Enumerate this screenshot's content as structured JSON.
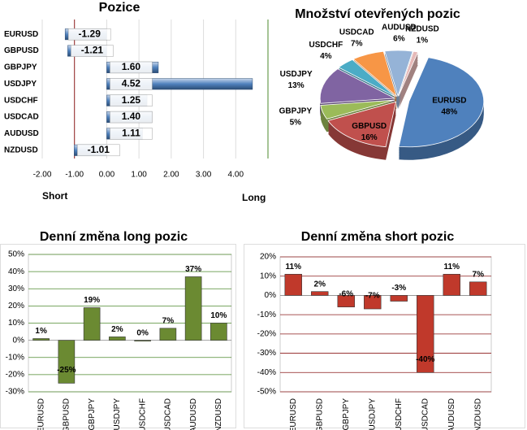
{
  "chart_data": [
    {
      "type": "hbar",
      "title": "Pozice",
      "categories": [
        "EURUSD",
        "GBPUSD",
        "GBPJPY",
        "USDJPY",
        "USDCHF",
        "USDCAD",
        "AUDUSD",
        "NZDUSD"
      ],
      "values": [
        -1.29,
        -1.21,
        1.6,
        4.52,
        1.25,
        1.4,
        1.11,
        -1.01
      ],
      "value_labels": [
        "-1.29",
        "-1.21",
        "1.60",
        "4.52",
        "1.25",
        "1.40",
        "1.11",
        "-1.01"
      ],
      "color": "#4f81bd",
      "xlim": [
        -2,
        5
      ],
      "xticks": [
        {
          "value": -2,
          "label": "-2.00"
        },
        {
          "value": -1,
          "label": "-1.00"
        },
        {
          "value": 0,
          "label": "0.00"
        },
        {
          "value": 1,
          "label": "1.00"
        },
        {
          "value": 2,
          "label": "2.00"
        },
        {
          "value": 3,
          "label": "3.00"
        },
        {
          "value": 4,
          "label": "4.00"
        }
      ],
      "annotations": [
        "Short",
        "Long"
      ]
    },
    {
      "type": "pie",
      "title": "Množství otevřených pozic",
      "categories": [
        "EURUSD",
        "GBPUSD",
        "GBPJPY",
        "USDJPY",
        "USDCHF",
        "USDCAD",
        "AUDUSD",
        "NZDUSD"
      ],
      "values": [
        48,
        16,
        5,
        13,
        4,
        7,
        6,
        1
      ],
      "value_labels": [
        "48%",
        "16%",
        "5%",
        "13%",
        "4%",
        "7%",
        "6%",
        "1%"
      ],
      "colors": [
        "#4f81bd",
        "#c0504d",
        "#9bbb59",
        "#8064a2",
        "#4bacc6",
        "#f79646",
        "#95b3d7",
        "#e6b9b8"
      ]
    },
    {
      "type": "bar",
      "title": "Denní změna long pozic",
      "categories": [
        "EURUSD",
        "GBPUSD",
        "GBPJPY",
        "USDJPY",
        "USDCHF",
        "USDCAD",
        "AUDUSD",
        "NZDUSD"
      ],
      "values": [
        1,
        -25,
        19,
        2,
        0,
        7,
        37,
        10
      ],
      "value_labels": [
        "1%",
        "-25%",
        "19%",
        "2%",
        "0%",
        "7%",
        "37%",
        "10%"
      ],
      "color": "#6b8a32",
      "grid_color": "#4e8a2e",
      "ylim": [
        -30,
        50
      ],
      "yticks": [
        {
          "value": -30,
          "label": "-30%"
        },
        {
          "value": -20,
          "label": "-20%"
        },
        {
          "value": -10,
          "label": "-10%"
        },
        {
          "value": 0,
          "label": "0%"
        },
        {
          "value": 10,
          "label": "10%"
        },
        {
          "value": 20,
          "label": "20%"
        },
        {
          "value": 30,
          "label": "30%"
        },
        {
          "value": 40,
          "label": "40%"
        },
        {
          "value": 50,
          "label": "50%"
        }
      ]
    },
    {
      "type": "bar",
      "title": "Denní změna short pozic",
      "categories": [
        "EURUSD",
        "GBPUSD",
        "GBPJPY",
        "USDJPY",
        "USDCHF",
        "USDCAD",
        "AUDUSD",
        "NZDUSD"
      ],
      "values": [
        11,
        2,
        -6,
        -7,
        -3,
        -40,
        11,
        7
      ],
      "value_labels": [
        "11%",
        "2%",
        "-6%",
        "-7%",
        "-3%",
        "-40%",
        "11%",
        "7%"
      ],
      "color": "#c0392b",
      "grid_color": "#8b1a1a",
      "ylim": [
        -50,
        20
      ],
      "yticks": [
        {
          "value": -50,
          "label": "-50%"
        },
        {
          "value": -40,
          "label": "-40%"
        },
        {
          "value": -30,
          "label": "-30%"
        },
        {
          "value": -20,
          "label": "-20%"
        },
        {
          "value": -10,
          "label": "-10%"
        },
        {
          "value": 0,
          "label": "0%"
        },
        {
          "value": 10,
          "label": "10%"
        },
        {
          "value": 20,
          "label": "20%"
        }
      ]
    }
  ]
}
